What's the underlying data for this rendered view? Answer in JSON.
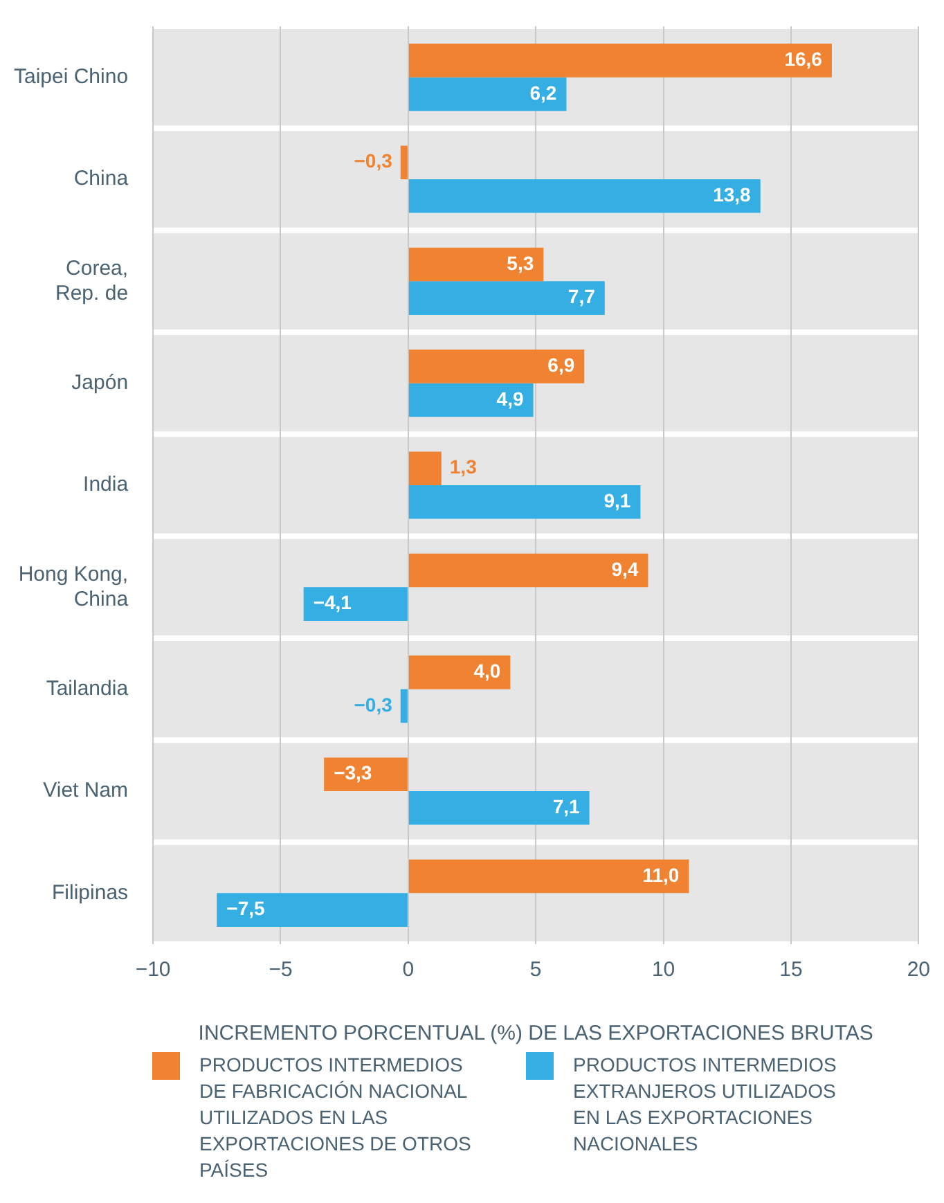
{
  "chart_data": {
    "type": "bar",
    "orientation": "horizontal",
    "xlabel": "INCREMENTO PORCENTUAL (%) DE LAS EXPORTACIONES BRUTAS",
    "categories": [
      "Taipei Chino",
      "China",
      "Corea, Rep. de",
      "Japón",
      "India",
      "Hong Kong, China",
      "Tailandia",
      "Viet Nam",
      "Filipinas"
    ],
    "series": [
      {
        "name": "PRODUCTOS INTERMEDIOS DE FABRICACIÓN NACIONAL UTILIZADOS EN LAS EXPORTACIONES DE OTROS PAÍSES",
        "color": "#f08331",
        "values": [
          16.6,
          -0.3,
          5.3,
          6.9,
          1.3,
          9.4,
          4.0,
          -3.3,
          11.0
        ],
        "value_labels": [
          "16,6",
          "−0,3",
          "5,3",
          "6,9",
          "1,3",
          "9,4",
          "4,0",
          "−3,3",
          "11,0"
        ]
      },
      {
        "name": "PRODUCTOS INTERMEDIOS EXTRANJEROS UTILIZADOS EN LAS EXPORTACIONES NACIONALES",
        "color": "#35aee4",
        "values": [
          6.2,
          13.8,
          7.7,
          4.9,
          9.1,
          -4.1,
          -0.3,
          7.1,
          -7.5
        ],
        "value_labels": [
          "6,2",
          "13,8",
          "7,7",
          "4,9",
          "9,1",
          "−4,1",
          "−0,3",
          "7,1",
          "−7,5"
        ]
      }
    ],
    "xlim": [
      -10,
      20
    ],
    "xticks": [
      {
        "value": -10,
        "label": "−10"
      },
      {
        "value": -5,
        "label": "−5"
      },
      0,
      5,
      10,
      15,
      20
    ],
    "grid": "x",
    "legend": "bottom"
  }
}
